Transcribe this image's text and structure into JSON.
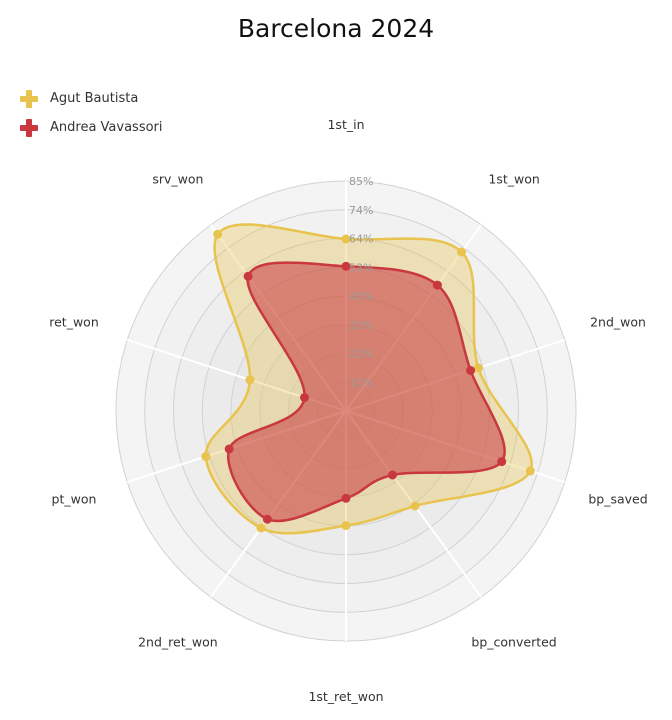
{
  "chart_data": {
    "type": "radar",
    "title": "Barcelona 2024",
    "axes": [
      "1st_in",
      "1st_won",
      "2nd_won",
      "bp_saved",
      "bp_converted",
      "1st_ret_won",
      "2nd_ret_won",
      "pt_won",
      "ret_won",
      "srv_won"
    ],
    "ticks": [
      "11%",
      "22%",
      "32%",
      "43%",
      "53%",
      "64%",
      "74%",
      "85%"
    ],
    "range": [
      0,
      85
    ],
    "series": [
      {
        "name": "Agut Bautista",
        "color": "#e8c34e",
        "values": [
          63,
          72,
          51,
          71,
          43,
          42,
          53,
          54,
          37,
          80
        ]
      },
      {
        "name": "Andrea Vavassori",
        "color": "#c9373f",
        "values": [
          53,
          57,
          48,
          60,
          29,
          32,
          49,
          45,
          16,
          61
        ]
      }
    ],
    "legend_position": "top-left"
  }
}
